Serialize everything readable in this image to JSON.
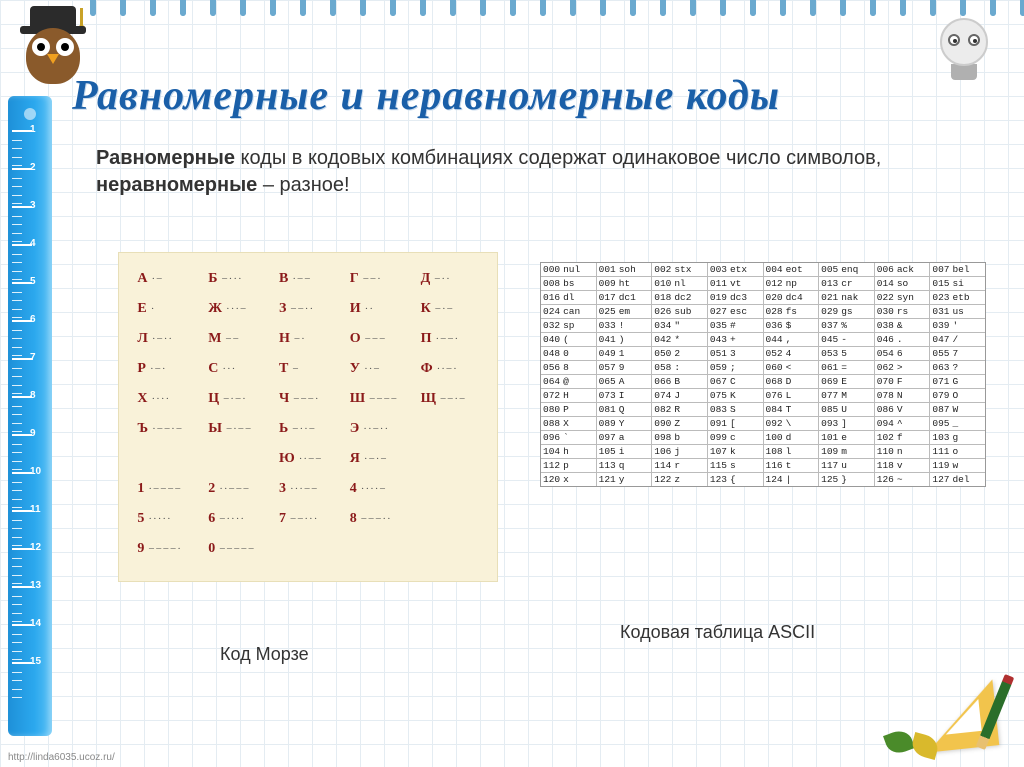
{
  "title": "Равномерные и неравномерные коды",
  "subtitle": {
    "b1": "Равномерные",
    "t1": " коды в кодовых комбинациях содержат одинаковое число символов, ",
    "b2": "неравномерные",
    "t2": " – разное!"
  },
  "morse_caption": "Код Морзе",
  "ascii_caption": "Кодовая таблица ASCII",
  "footer_url": "http://linda6035.ucoz.ru/",
  "ruler": {
    "count": 15
  },
  "rings": {
    "count": 32
  },
  "morse": {
    "bg": "#f9f2d9",
    "letter_color": "#8b1a1a",
    "rows": [
      [
        [
          "А",
          "·−"
        ],
        [
          "Б",
          "−···"
        ],
        [
          "В",
          "·−−"
        ],
        [
          "Г",
          "−−·"
        ],
        [
          "Д",
          "−··"
        ]
      ],
      [
        [
          "Е",
          "·"
        ],
        [
          "Ж",
          "···−"
        ],
        [
          "З",
          "−−··"
        ],
        [
          "И",
          "··"
        ],
        [
          "К",
          "−·−"
        ]
      ],
      [
        [
          "Л",
          "·−··"
        ],
        [
          "М",
          "−−"
        ],
        [
          "Н",
          "−·"
        ],
        [
          "О",
          "−−−"
        ],
        [
          "П",
          "·−−·"
        ]
      ],
      [
        [
          "Р",
          "·−·"
        ],
        [
          "С",
          "···"
        ],
        [
          "Т",
          "−"
        ],
        [
          "У",
          "··−"
        ],
        [
          "Ф",
          "··−·"
        ]
      ],
      [
        [
          "Х",
          "····"
        ],
        [
          "Ц",
          "−·−·"
        ],
        [
          "Ч",
          "−−−·"
        ],
        [
          "Ш",
          "−−−−"
        ],
        [
          "Щ",
          "−−·−"
        ]
      ],
      [
        [
          "Ъ",
          "·−−·−"
        ],
        [
          "Ы",
          "−·−−"
        ],
        [
          "Ь",
          "−··−"
        ],
        [
          "Э",
          "··−··"
        ],
        [
          "",
          ""
        ]
      ],
      [
        [
          "",
          ""
        ],
        [
          "",
          ""
        ],
        [
          "Ю",
          "··−−"
        ],
        [
          "Я",
          "·−·−"
        ],
        [
          "",
          ""
        ]
      ],
      [
        [
          "1",
          "·−−−−"
        ],
        [
          "2",
          "··−−−"
        ],
        [
          "3",
          "···−−"
        ],
        [
          "4",
          "····−"
        ],
        [
          "",
          ""
        ]
      ],
      [
        [
          "5",
          "·····"
        ],
        [
          "6",
          "−····"
        ],
        [
          "7",
          "−−···"
        ],
        [
          "8",
          "−−−··"
        ],
        [
          "",
          ""
        ]
      ],
      [
        [
          "9",
          "−−−−·"
        ],
        [
          "0",
          "−−−−−"
        ],
        [
          "",
          ""
        ],
        [
          "",
          ""
        ],
        [
          "",
          ""
        ]
      ]
    ]
  },
  "ascii": {
    "font": "Courier New",
    "rows": [
      [
        [
          "000",
          "nul"
        ],
        [
          "001",
          "soh"
        ],
        [
          "002",
          "stx"
        ],
        [
          "003",
          "etx"
        ],
        [
          "004",
          "eot"
        ],
        [
          "005",
          "enq"
        ],
        [
          "006",
          "ack"
        ],
        [
          "007",
          "bel"
        ]
      ],
      [
        [
          "008",
          "bs"
        ],
        [
          "009",
          "ht"
        ],
        [
          "010",
          "nl"
        ],
        [
          "011",
          "vt"
        ],
        [
          "012",
          "np"
        ],
        [
          "013",
          "cr"
        ],
        [
          "014",
          "so"
        ],
        [
          "015",
          "si"
        ]
      ],
      [
        [
          "016",
          "dl"
        ],
        [
          "017",
          "dc1"
        ],
        [
          "018",
          "dc2"
        ],
        [
          "019",
          "dc3"
        ],
        [
          "020",
          "dc4"
        ],
        [
          "021",
          "nak"
        ],
        [
          "022",
          "syn"
        ],
        [
          "023",
          "etb"
        ]
      ],
      [
        [
          "024",
          "can"
        ],
        [
          "025",
          "em"
        ],
        [
          "026",
          "sub"
        ],
        [
          "027",
          "esc"
        ],
        [
          "028",
          "fs"
        ],
        [
          "029",
          "gs"
        ],
        [
          "030",
          "rs"
        ],
        [
          "031",
          "us"
        ]
      ],
      [
        [
          "032",
          "sp"
        ],
        [
          "033",
          "!"
        ],
        [
          "034",
          "\""
        ],
        [
          "035",
          "#"
        ],
        [
          "036",
          "$"
        ],
        [
          "037",
          "%"
        ],
        [
          "038",
          "&"
        ],
        [
          "039",
          "'"
        ]
      ],
      [
        [
          "040",
          "("
        ],
        [
          "041",
          ")"
        ],
        [
          "042",
          "*"
        ],
        [
          "043",
          "+"
        ],
        [
          "044",
          ","
        ],
        [
          "045",
          "-"
        ],
        [
          "046",
          "."
        ],
        [
          "047",
          "/"
        ]
      ],
      [
        [
          "048",
          "0"
        ],
        [
          "049",
          "1"
        ],
        [
          "050",
          "2"
        ],
        [
          "051",
          "3"
        ],
        [
          "052",
          "4"
        ],
        [
          "053",
          "5"
        ],
        [
          "054",
          "6"
        ],
        [
          "055",
          "7"
        ]
      ],
      [
        [
          "056",
          "8"
        ],
        [
          "057",
          "9"
        ],
        [
          "058",
          ":"
        ],
        [
          "059",
          ";"
        ],
        [
          "060",
          "<"
        ],
        [
          "061",
          "="
        ],
        [
          "062",
          ">"
        ],
        [
          "063",
          "?"
        ]
      ],
      [
        [
          "064",
          "@"
        ],
        [
          "065",
          "A"
        ],
        [
          "066",
          "B"
        ],
        [
          "067",
          "C"
        ],
        [
          "068",
          "D"
        ],
        [
          "069",
          "E"
        ],
        [
          "070",
          "F"
        ],
        [
          "071",
          "G"
        ]
      ],
      [
        [
          "072",
          "H"
        ],
        [
          "073",
          "I"
        ],
        [
          "074",
          "J"
        ],
        [
          "075",
          "K"
        ],
        [
          "076",
          "L"
        ],
        [
          "077",
          "M"
        ],
        [
          "078",
          "N"
        ],
        [
          "079",
          "O"
        ]
      ],
      [
        [
          "080",
          "P"
        ],
        [
          "081",
          "Q"
        ],
        [
          "082",
          "R"
        ],
        [
          "083",
          "S"
        ],
        [
          "084",
          "T"
        ],
        [
          "085",
          "U"
        ],
        [
          "086",
          "V"
        ],
        [
          "087",
          "W"
        ]
      ],
      [
        [
          "088",
          "X"
        ],
        [
          "089",
          "Y"
        ],
        [
          "090",
          "Z"
        ],
        [
          "091",
          "["
        ],
        [
          "092",
          "\\"
        ],
        [
          "093",
          "]"
        ],
        [
          "094",
          "^"
        ],
        [
          "095",
          "_"
        ]
      ],
      [
        [
          "096",
          "`"
        ],
        [
          "097",
          "a"
        ],
        [
          "098",
          "b"
        ],
        [
          "099",
          "c"
        ],
        [
          "100",
          "d"
        ],
        [
          "101",
          "e"
        ],
        [
          "102",
          "f"
        ],
        [
          "103",
          "g"
        ]
      ],
      [
        [
          "104",
          "h"
        ],
        [
          "105",
          "i"
        ],
        [
          "106",
          "j"
        ],
        [
          "107",
          "k"
        ],
        [
          "108",
          "l"
        ],
        [
          "109",
          "m"
        ],
        [
          "110",
          "n"
        ],
        [
          "111",
          "o"
        ]
      ],
      [
        [
          "112",
          "p"
        ],
        [
          "113",
          "q"
        ],
        [
          "114",
          "r"
        ],
        [
          "115",
          "s"
        ],
        [
          "116",
          "t"
        ],
        [
          "117",
          "u"
        ],
        [
          "118",
          "v"
        ],
        [
          "119",
          "w"
        ]
      ],
      [
        [
          "120",
          "x"
        ],
        [
          "121",
          "y"
        ],
        [
          "122",
          "z"
        ],
        [
          "123",
          "{"
        ],
        [
          "124",
          "|"
        ],
        [
          "125",
          "}"
        ],
        [
          "126",
          "~"
        ],
        [
          "127",
          "del"
        ]
      ]
    ]
  }
}
